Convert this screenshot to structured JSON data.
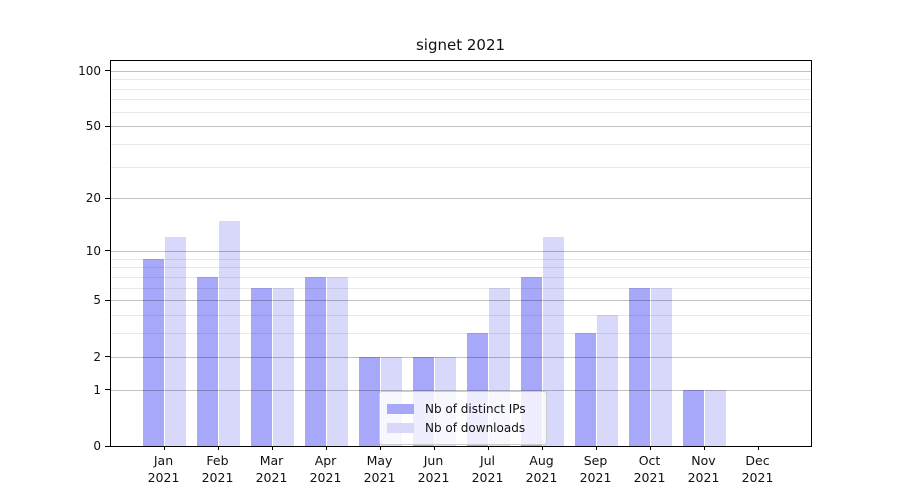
{
  "title": "signet 2021",
  "colors": {
    "distinct_ips_bar": "#a8a8fa",
    "downloads_bar": "#d8d8fa",
    "major_grid": "#c3c3c3",
    "minor_grid": "#e9e9e9",
    "spine": "#000000",
    "legend_border": "#cccccc"
  },
  "legend": {
    "items": [
      {
        "label": "Nb of distinct IPs",
        "color": "#a8a8fa"
      },
      {
        "label": "Nb of downloads",
        "color": "#d8d8fa"
      }
    ]
  },
  "chart_data": {
    "type": "bar",
    "title": "signet 2021",
    "months": [
      "Jan",
      "Feb",
      "Mar",
      "Apr",
      "May",
      "Jun",
      "Jul",
      "Aug",
      "Sep",
      "Oct",
      "Nov",
      "Dec"
    ],
    "year": "2021",
    "categories": [
      "Jan 2021",
      "Feb 2021",
      "Mar 2021",
      "Apr 2021",
      "May 2021",
      "Jun 2021",
      "Jul 2021",
      "Aug 2021",
      "Sep 2021",
      "Oct 2021",
      "Nov 2021",
      "Dec 2021"
    ],
    "series": [
      {
        "name": "Nb of distinct IPs",
        "color": "#a8a8fa",
        "values": [
          9,
          7,
          6,
          7,
          2,
          2,
          3,
          7,
          3,
          6,
          1,
          0
        ]
      },
      {
        "name": "Nb of downloads",
        "color": "#d8d8fa",
        "values": [
          12,
          15,
          6,
          7,
          2,
          2,
          6,
          12,
          4,
          6,
          1,
          0
        ]
      }
    ],
    "xlabel": "",
    "ylabel": "",
    "yscale": "log1p",
    "y_ticks": [
      0,
      1,
      2,
      5,
      10,
      20,
      50,
      100
    ],
    "y_minor_gridlines": [
      3,
      4,
      6,
      7,
      8,
      9,
      30,
      40,
      60,
      70,
      80,
      90
    ],
    "ylim": [
      0,
      113
    ],
    "grid": true,
    "legend_position": "inside lower center"
  }
}
